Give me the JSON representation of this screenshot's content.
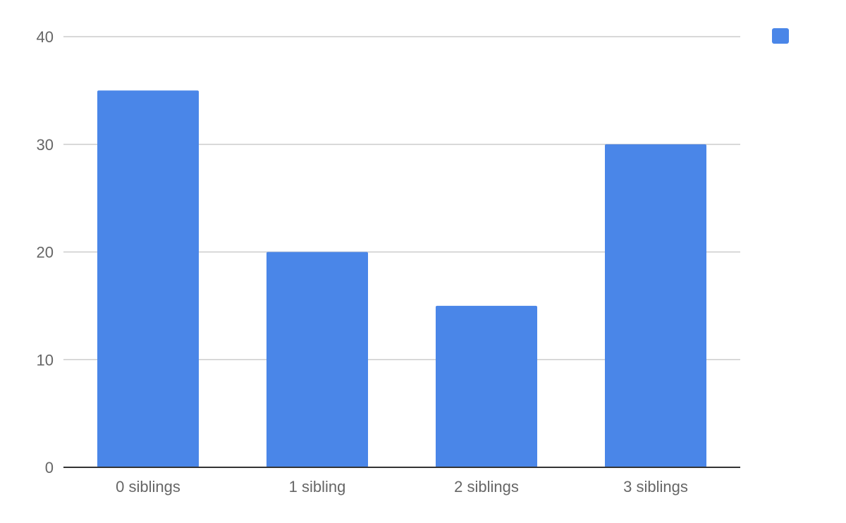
{
  "chart_data": {
    "type": "bar",
    "title": "",
    "xlabel": "",
    "ylabel": "",
    "categories": [
      "0 siblings",
      "1 sibling",
      "2 siblings",
      "3 siblings"
    ],
    "series": [
      {
        "name": "",
        "values": [
          35,
          20,
          15,
          30
        ],
        "color": "#4a86e8"
      }
    ],
    "ylim": [
      0,
      40
    ],
    "yticks": [
      0,
      10,
      20,
      30,
      40
    ],
    "grid": true,
    "legend": {
      "position": "top-right",
      "entries": [
        {
          "label": "",
          "color": "#4a86e8"
        }
      ]
    }
  }
}
